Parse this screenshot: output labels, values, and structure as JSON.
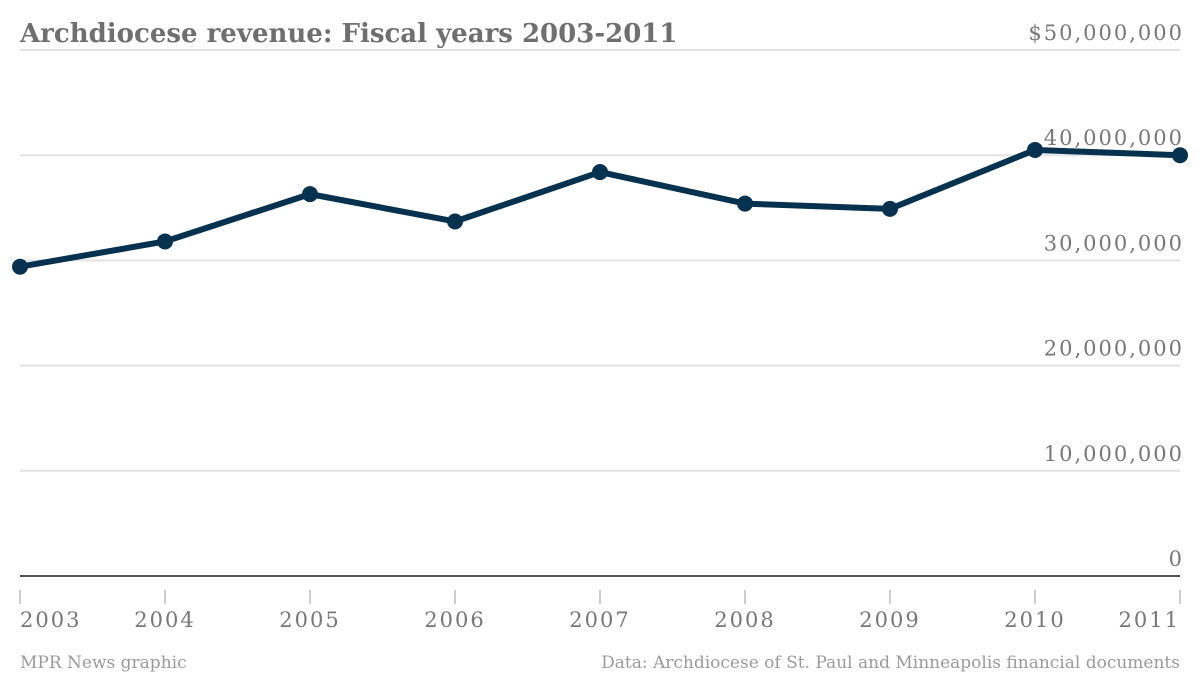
{
  "chart_data": {
    "type": "line",
    "title": "Archdiocese revenue: Fiscal years 2003-2011",
    "xlabel": "",
    "ylabel": "",
    "x": [
      "2003",
      "2004",
      "2005",
      "2006",
      "2007",
      "2008",
      "2009",
      "2010",
      "2011"
    ],
    "series": [
      {
        "name": "",
        "values": [
          29400000,
          31800000,
          36300000,
          33700000,
          38400000,
          35400000,
          34900000,
          40500000,
          40000000
        ]
      }
    ],
    "ylim": [
      0,
      50000000
    ],
    "yticks": [
      0,
      10000000,
      20000000,
      30000000,
      40000000,
      50000000
    ],
    "ytick_labels": [
      "0",
      "10,000,000",
      "20,000,000",
      "30,000,000",
      "40,000,000",
      "$50,000,000"
    ],
    "grid": true,
    "line_color": "#07324f"
  },
  "footer": {
    "left": "MPR News graphic",
    "right": "Data: Archdiocese of St. Paul and Minneapolis financial documents"
  }
}
